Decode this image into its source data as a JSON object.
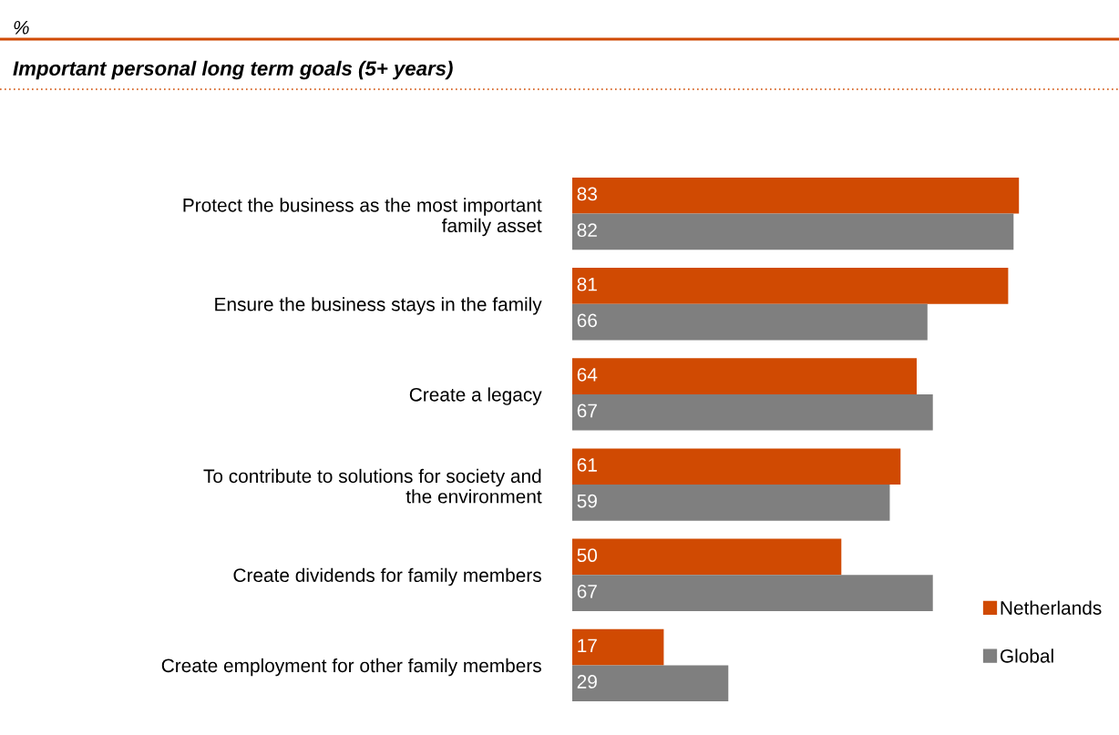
{
  "chart_data": {
    "type": "bar",
    "orientation": "horizontal",
    "title": "Important personal long term goals (5+ years)",
    "annotations": [
      "%"
    ],
    "categories": [
      "Protect the business as the most important family asset",
      "Ensure the business stays in the family",
      "Create a legacy",
      "To contribute to solutions for society and the environment",
      "Create dividends for family members",
      "Create employment for other family members"
    ],
    "series": [
      {
        "name": "Netherlands",
        "color": "#d04a02",
        "values": [
          83,
          81,
          64,
          61,
          50,
          17
        ]
      },
      {
        "name": "Global",
        "color": "#7f7f7f",
        "values": [
          82,
          66,
          67,
          59,
          67,
          29
        ]
      }
    ],
    "data_labels": true,
    "legend": "bottom right",
    "tick_labels": "y",
    "grid": false
  }
}
